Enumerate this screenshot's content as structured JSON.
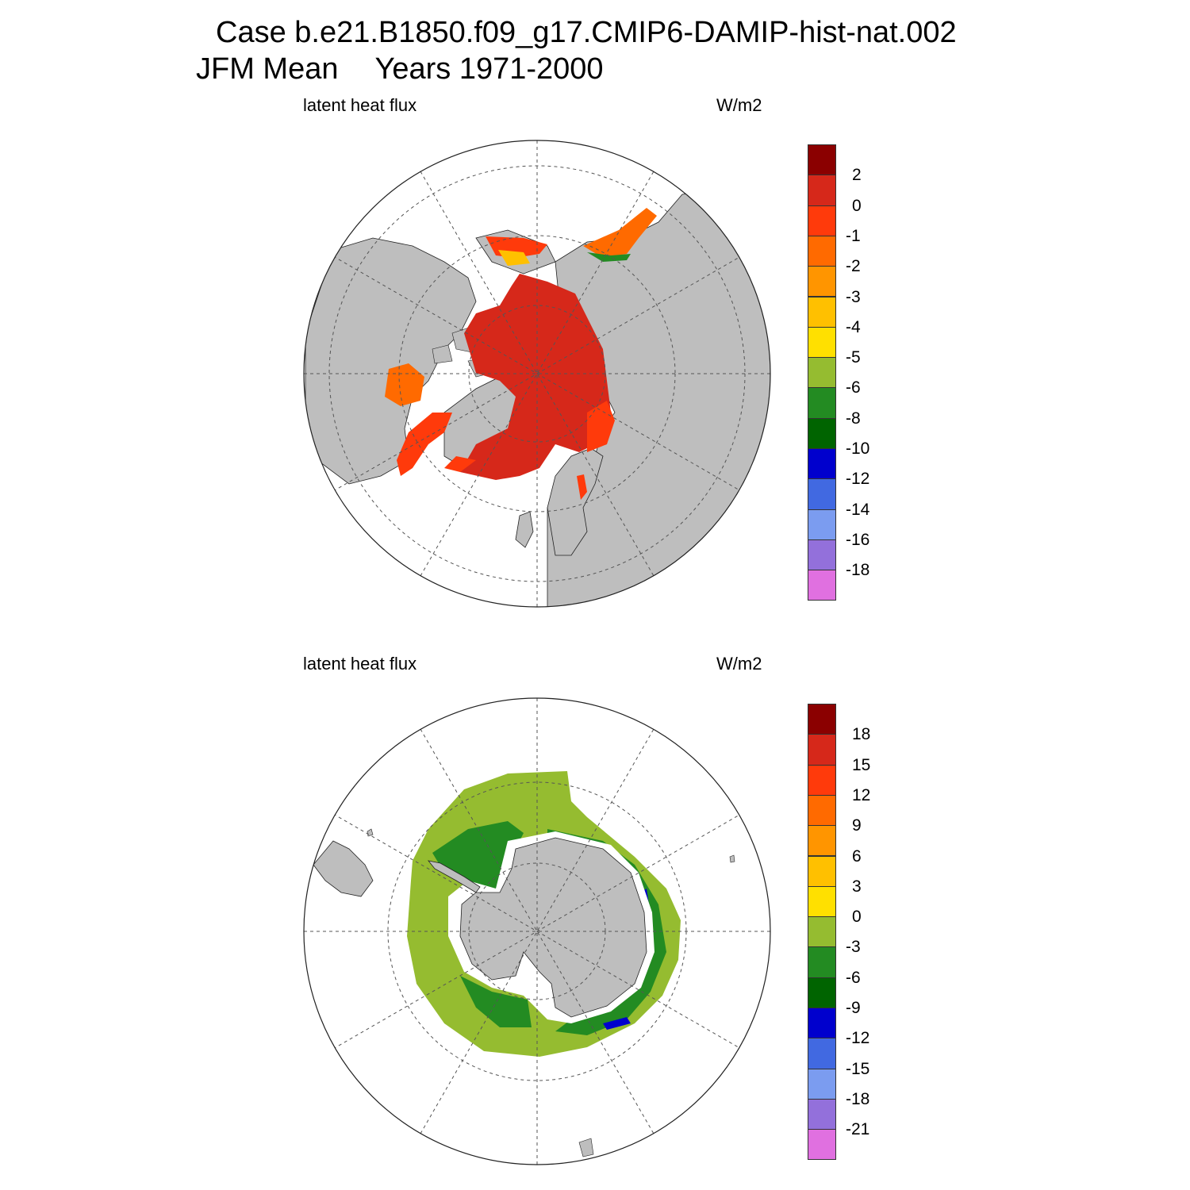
{
  "title": {
    "case": "Case b.e21.B1850.f09_g17.CMIP6-DAMIP-hist-nat.002",
    "season": "JFM Mean",
    "years": "Years 1971-2000"
  },
  "panels": [
    {
      "id": "north",
      "hemisphere": "north-polar-stereographic",
      "variable": "latent heat flux",
      "units": "W/m2",
      "colorbar": {
        "colors": [
          "#8b0000",
          "#d6281a",
          "#ff3a0b",
          "#ff6a00",
          "#ff9500",
          "#ffc000",
          "#ffe000",
          "#95bc30",
          "#238b22",
          "#006400",
          "#0000cd",
          "#4169e1",
          "#7b9cf0",
          "#9370db",
          "#e070e0"
        ],
        "labels": [
          "2",
          "0",
          "-1",
          "-2",
          "-3",
          "-4",
          "-5",
          "-6",
          "-8",
          "-10",
          "-12",
          "-14",
          "-16",
          "-18"
        ]
      }
    },
    {
      "id": "south",
      "hemisphere": "south-polar-stereographic",
      "variable": "latent heat flux",
      "units": "W/m2",
      "colorbar": {
        "colors": [
          "#8b0000",
          "#d6281a",
          "#ff3a0b",
          "#ff6a00",
          "#ff9500",
          "#ffc000",
          "#ffe000",
          "#95bc30",
          "#238b22",
          "#006400",
          "#0000cd",
          "#4169e1",
          "#7b9cf0",
          "#9370db",
          "#e070e0"
        ],
        "labels": [
          "18",
          "15",
          "12",
          "9",
          "6",
          "3",
          "0",
          "-3",
          "-6",
          "-9",
          "-12",
          "-15",
          "-18",
          "-21"
        ]
      }
    }
  ],
  "colors": {
    "land": "#bebebe",
    "ocean_missing": "#ffffff",
    "gridline": "#555555"
  }
}
